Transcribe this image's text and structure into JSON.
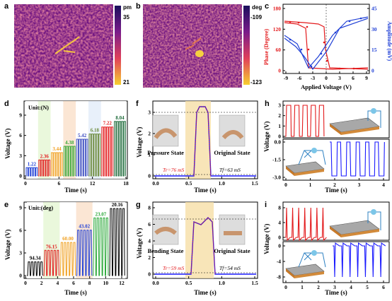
{
  "panels": {
    "a": {
      "label": "a",
      "unit": "pm",
      "max": "35",
      "min": "21"
    },
    "b": {
      "label": "b",
      "unit": "deg",
      "max": "-109",
      "min": "-123"
    },
    "c": {
      "label": "c",
      "xlabel": "Applied Voltage (V)",
      "ylabel_left": "Phase (Degree)",
      "ylabel_right": "Amplitude (mV)",
      "xticks": [
        "-9",
        "-6",
        "-3",
        "0",
        "3",
        "6",
        "9"
      ],
      "yticks_left": [
        "0",
        "60",
        "120",
        "180"
      ],
      "yticks_right": [
        "0",
        "15",
        "30",
        "45"
      ]
    },
    "d": {
      "label": "d",
      "unit_text": "Unit:(N)",
      "xlabel": "Time (s)",
      "ylabel": "Voltage (V)",
      "xticks": [
        "0",
        "6",
        "12",
        "18"
      ],
      "yticks": [
        "0",
        "3",
        "6",
        "9"
      ],
      "values": [
        "1.22",
        "2.36",
        "3.44",
        "4.38",
        "5.42",
        "6.18",
        "7.22",
        "8.04"
      ]
    },
    "e": {
      "label": "e",
      "unit_text": "Unit:(deg)",
      "xlabel": "Time (s)",
      "ylabel": "Voltage (V)",
      "xticks": [
        "0",
        "2",
        "4",
        "6",
        "8",
        "10",
        "12"
      ],
      "yticks": [
        "0",
        "3",
        "6",
        "9"
      ],
      "values": [
        "94.34",
        "76.15",
        "60.00",
        "43.02",
        "23.07",
        "20.16"
      ]
    },
    "f": {
      "label": "f",
      "xlabel": "Time (s)",
      "ylabel": "Voltage (V)",
      "xticks": [
        "0.0",
        "0.5",
        "1.0",
        "1.5"
      ],
      "yticks": [
        "0",
        "1",
        "2",
        "3"
      ],
      "state_left": "Pressure State",
      "state_right": "Original State",
      "tr": "Tr=76 mS",
      "tf": "Tf=63 mS"
    },
    "g": {
      "label": "g",
      "xlabel": "Time (s)",
      "ylabel": "Voltage (V)",
      "xticks": [
        "0.0",
        "0.5",
        "1.0",
        "1.5"
      ],
      "yticks": [
        "0",
        "2",
        "4",
        "6",
        "8"
      ],
      "state_left": "Bending State",
      "state_right": "Original State",
      "tr": "Tr=59 mS",
      "tf": "Tf=54 mS"
    },
    "h": {
      "label": "h",
      "xlabel": "Time (s)",
      "ylabel": "Voltage (V)",
      "xticks": [
        "0",
        "1",
        "2",
        "3",
        "4"
      ],
      "yticks_top": [
        "0",
        "1",
        "2",
        "3"
      ],
      "yticks_bot": [
        "-3.0",
        "-1.5",
        "0.0"
      ]
    },
    "i": {
      "label": "i",
      "xlabel": "Time (s)",
      "ylabel": "Voltage (V)",
      "xticks": [
        "0",
        "1",
        "2",
        "3",
        "4",
        "5",
        "6"
      ],
      "yticks_top": [
        "0",
        "4",
        "8"
      ],
      "yticks_bot": [
        "-8",
        "-4",
        "0"
      ]
    }
  },
  "colors": {
    "red": "#e31a1c",
    "blue": "#1f3fd6",
    "navy": "#1a1aff"
  }
}
